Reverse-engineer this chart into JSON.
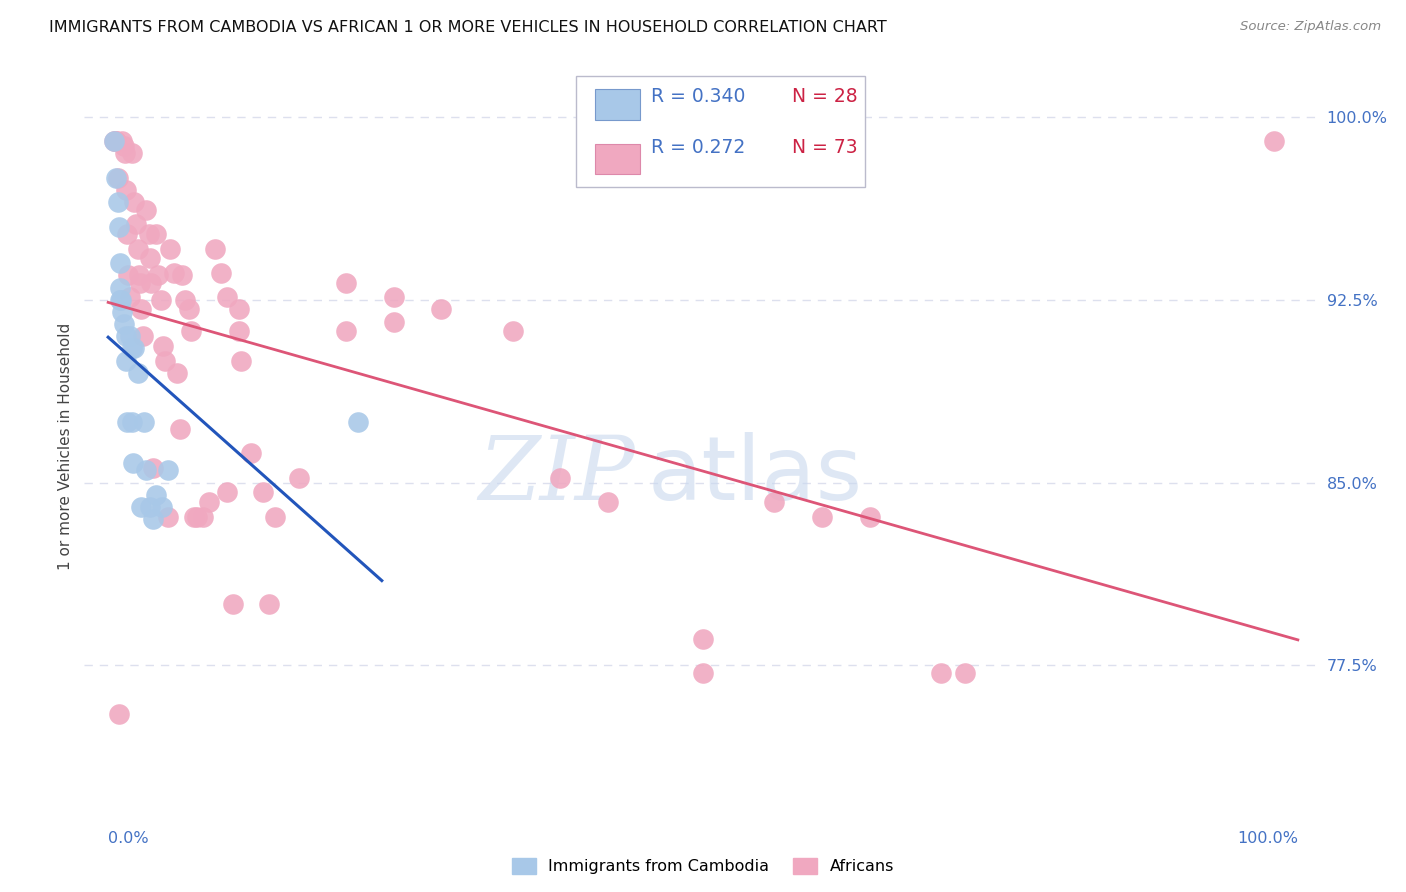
{
  "title": "IMMIGRANTS FROM CAMBODIA VS AFRICAN 1 OR MORE VEHICLES IN HOUSEHOLD CORRELATION CHART",
  "source": "Source: ZipAtlas.com",
  "ylabel": "1 or more Vehicles in Household",
  "background_color": "#ffffff",
  "watermark_zip": "ZIP",
  "watermark_atlas": "atlas",
  "blue_R": 0.34,
  "blue_N": 28,
  "pink_R": 0.272,
  "pink_N": 73,
  "blue_scatter_color": "#a8c8e8",
  "pink_scatter_color": "#f0a8c0",
  "blue_line_color": "#2255bb",
  "pink_line_color": "#dd5577",
  "title_color": "#111111",
  "source_color": "#888888",
  "axis_tick_color": "#4472c4",
  "grid_color": "#dde0ee",
  "legend_R_color": "#4472c4",
  "legend_N_color": "#cc2244",
  "yticks": [
    77.5,
    85.0,
    92.5,
    100.0
  ],
  "ytick_labels": [
    "77.5%",
    "85.0%",
    "92.5%",
    "100.0%"
  ],
  "ylim_bottom": 71.5,
  "ylim_top": 101.5,
  "xlim_left": -2.0,
  "xlim_right": 102.0,
  "blue_x": [
    0.5,
    0.7,
    0.8,
    0.9,
    1.0,
    1.0,
    1.0,
    1.1,
    1.2,
    1.3,
    1.5,
    1.5,
    1.6,
    1.8,
    2.0,
    2.0,
    2.1,
    2.2,
    2.5,
    2.8,
    3.0,
    3.2,
    3.5,
    3.8,
    4.0,
    4.5,
    5.0,
    21.0
  ],
  "blue_y": [
    99.0,
    97.5,
    96.5,
    95.5,
    94.0,
    93.0,
    92.5,
    92.5,
    92.0,
    91.5,
    91.0,
    90.0,
    87.5,
    91.0,
    90.5,
    87.5,
    85.8,
    90.5,
    89.5,
    84.0,
    87.5,
    85.5,
    84.0,
    83.5,
    84.5,
    84.0,
    85.5,
    87.5
  ],
  "pink_x": [
    0.5,
    0.6,
    0.7,
    0.7,
    0.8,
    0.9,
    1.2,
    1.3,
    1.4,
    1.5,
    1.6,
    1.7,
    1.8,
    2.0,
    2.2,
    2.3,
    2.5,
    2.6,
    2.7,
    2.8,
    2.9,
    3.2,
    3.4,
    3.5,
    3.6,
    3.8,
    4.0,
    4.2,
    4.4,
    4.6,
    4.8,
    5.0,
    5.2,
    5.5,
    5.8,
    6.0,
    6.2,
    6.5,
    6.8,
    7.0,
    7.2,
    7.5,
    8.0,
    8.5,
    9.0,
    9.5,
    10.0,
    10.0,
    10.5,
    11.0,
    11.0,
    11.2,
    12.0,
    13.0,
    13.5,
    14.0,
    16.0,
    20.0,
    20.0,
    24.0,
    24.0,
    28.0,
    34.0,
    38.0,
    42.0,
    50.0,
    50.0,
    56.0,
    60.0,
    64.0,
    70.0,
    72.0,
    98.0
  ],
  "pink_y": [
    99.0,
    99.0,
    99.0,
    99.0,
    97.5,
    75.5,
    99.0,
    98.8,
    98.5,
    97.0,
    95.2,
    93.5,
    92.6,
    98.5,
    96.5,
    95.6,
    94.6,
    93.5,
    93.2,
    92.1,
    91.0,
    96.2,
    95.2,
    94.2,
    93.2,
    85.6,
    95.2,
    93.5,
    92.5,
    90.6,
    90.0,
    83.6,
    94.6,
    93.6,
    89.5,
    87.2,
    93.5,
    92.5,
    92.1,
    91.2,
    83.6,
    83.6,
    83.6,
    84.2,
    94.6,
    93.6,
    92.6,
    84.6,
    80.0,
    92.1,
    91.2,
    90.0,
    86.2,
    84.6,
    80.0,
    83.6,
    85.2,
    93.2,
    91.2,
    92.6,
    91.6,
    92.1,
    91.2,
    85.2,
    84.2,
    78.6,
    77.2,
    84.2,
    83.6,
    83.6,
    77.2,
    77.2,
    99.0
  ]
}
